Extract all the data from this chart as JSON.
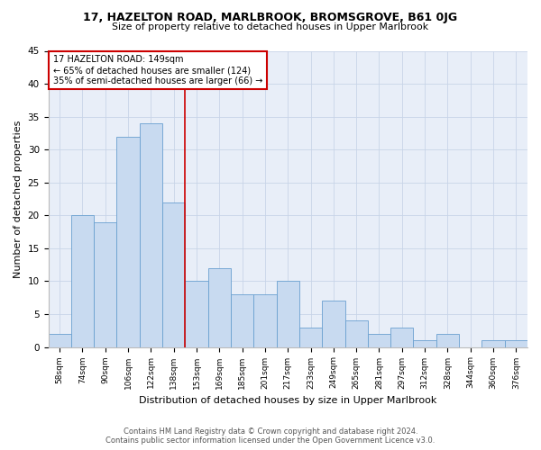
{
  "title": "17, HAZELTON ROAD, MARLBROOK, BROMSGROVE, B61 0JG",
  "subtitle": "Size of property relative to detached houses in Upper Marlbrook",
  "xlabel": "Distribution of detached houses by size in Upper Marlbrook",
  "ylabel": "Number of detached properties",
  "categories": [
    "58sqm",
    "74sqm",
    "90sqm",
    "106sqm",
    "122sqm",
    "138sqm",
    "153sqm",
    "169sqm",
    "185sqm",
    "201sqm",
    "217sqm",
    "233sqm",
    "249sqm",
    "265sqm",
    "281sqm",
    "297sqm",
    "312sqm",
    "328sqm",
    "344sqm",
    "360sqm",
    "376sqm"
  ],
  "values": [
    2,
    20,
    19,
    32,
    34,
    22,
    10,
    12,
    8,
    8,
    10,
    3,
    7,
    4,
    2,
    3,
    1,
    2,
    0,
    1,
    1
  ],
  "bar_color": "#c8daf0",
  "bar_edge_color": "#6aa0d0",
  "highlight_line_after_bin": 5,
  "annotation_title": "17 HAZELTON ROAD: 149sqm",
  "annotation_line1": "← 65% of detached houses are smaller (124)",
  "annotation_line2": "35% of semi-detached houses are larger (66) →",
  "annotation_box_color": "#ffffff",
  "annotation_box_edge": "#cc0000",
  "red_line_color": "#cc0000",
  "ylim": [
    0,
    45
  ],
  "yticks": [
    0,
    5,
    10,
    15,
    20,
    25,
    30,
    35,
    40,
    45
  ],
  "grid_color": "#c8d4e8",
  "background_color": "#e8eef8",
  "footer_line1": "Contains HM Land Registry data © Crown copyright and database right 2024.",
  "footer_line2": "Contains public sector information licensed under the Open Government Licence v3.0."
}
